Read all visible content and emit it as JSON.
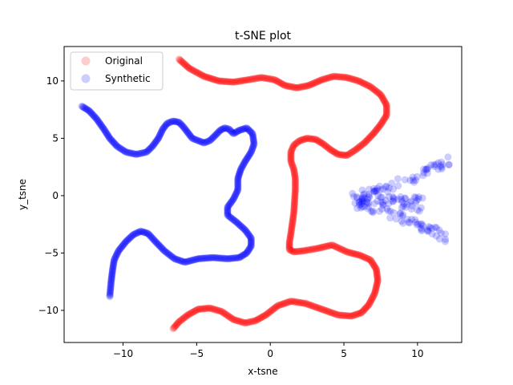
{
  "chart_data": {
    "type": "scatter",
    "title": "t-SNE plot",
    "xlabel": "x-tsne",
    "ylabel": "y_tsne",
    "xlim": [
      -14,
      13
    ],
    "ylim": [
      -12.8,
      13
    ],
    "xticks": [
      -10,
      -5,
      0,
      5,
      10
    ],
    "yticks": [
      -10,
      -5,
      0,
      5,
      10
    ],
    "xtick_labels": [
      "−10",
      "−5",
      "0",
      "5",
      "10"
    ],
    "ytick_labels": [
      "−10",
      "−5",
      "0",
      "5",
      "10"
    ],
    "grid": false,
    "legend_position": "top-left",
    "series": [
      {
        "name": "Original",
        "color": "#ff0000",
        "alpha": 0.2,
        "style": "dense-path",
        "x": [
          -6.2,
          -5.5,
          -4.5,
          -3.5,
          -2.5,
          -1.5,
          -0.6,
          0.3,
          1.0,
          1.8,
          2.6,
          3.5,
          4.3,
          5.2,
          6.0,
          6.8,
          7.5,
          7.9,
          7.9,
          7.5,
          7.0,
          6.4,
          5.8,
          5.2,
          4.6,
          4.1,
          3.6,
          3.1,
          2.5,
          2.0,
          1.6,
          1.4,
          1.4,
          1.6,
          1.7,
          1.7,
          1.65,
          1.6,
          1.5,
          1.4,
          1.3,
          1.3,
          1.6,
          2.3,
          3.2,
          4.2,
          5.2,
          6.1,
          6.8,
          7.2,
          7.3,
          7.1,
          6.7,
          6.2,
          5.5,
          4.6,
          3.5,
          2.4,
          1.4,
          0.5,
          -0.3,
          -1.0,
          -1.7,
          -2.5,
          -3.3,
          -4.1,
          -4.9,
          -5.6,
          -6.2,
          -6.6
        ],
        "y": [
          11.9,
          11.1,
          10.4,
          10.0,
          9.9,
          10.1,
          10.3,
          10.1,
          9.6,
          9.4,
          9.6,
          10.1,
          10.4,
          10.3,
          10.0,
          9.5,
          8.8,
          7.9,
          7.0,
          6.2,
          5.4,
          4.6,
          4.0,
          3.5,
          3.6,
          4.0,
          4.5,
          4.9,
          5.0,
          4.8,
          4.4,
          3.8,
          3.0,
          2.3,
          1.5,
          0.5,
          -0.5,
          -1.5,
          -2.4,
          -3.3,
          -4.1,
          -4.7,
          -4.9,
          -4.8,
          -4.6,
          -4.3,
          -4.9,
          -5.2,
          -5.6,
          -6.4,
          -7.4,
          -8.5,
          -9.5,
          -10.2,
          -10.5,
          -10.4,
          -9.9,
          -9.4,
          -9.2,
          -9.6,
          -10.4,
          -10.9,
          -11.1,
          -10.8,
          -10.1,
          -9.8,
          -9.9,
          -10.4,
          -11.0,
          -11.6
        ]
      },
      {
        "name": "Synthetic",
        "color": "#0000ff",
        "alpha": 0.2,
        "style": "dense-path-and-cluster",
        "x": [
          -12.8,
          -12.3,
          -11.8,
          -11.3,
          -10.9,
          -10.4,
          -9.8,
          -9.1,
          -8.4,
          -8.0,
          -7.6,
          -7.3,
          -7.0,
          -6.6,
          -6.2,
          -5.9,
          -5.6,
          -5.3,
          -4.9,
          -4.5,
          -4.1,
          -3.7,
          -3.4,
          -3.1,
          -2.8,
          -2.5,
          -2.1,
          -1.6,
          -1.2,
          -1.1,
          -1.3,
          -1.7,
          -2.0,
          -2.2,
          -2.2,
          -2.5,
          -2.9,
          -2.9,
          -2.3,
          -1.7,
          -1.3,
          -1.3,
          -1.6,
          -2.1,
          -2.9,
          -3.9,
          -4.9,
          -5.8,
          -6.5,
          -7.2,
          -7.8,
          -8.3,
          -8.8,
          -9.3,
          -9.8,
          -10.3,
          -10.6,
          -10.7,
          -10.8,
          -10.9
        ],
        "y": [
          7.8,
          7.4,
          6.7,
          5.8,
          5.0,
          4.3,
          3.8,
          3.6,
          3.8,
          4.3,
          5.0,
          5.8,
          6.3,
          6.5,
          6.4,
          6.0,
          5.5,
          5.0,
          4.8,
          4.6,
          4.8,
          5.3,
          5.7,
          5.9,
          5.8,
          5.4,
          5.7,
          5.9,
          5.4,
          4.5,
          3.8,
          3.0,
          2.3,
          1.5,
          0.5,
          -0.3,
          -1.0,
          -1.7,
          -2.3,
          -3.0,
          -3.7,
          -4.4,
          -5.0,
          -5.4,
          -5.5,
          -5.4,
          -5.5,
          -5.8,
          -5.5,
          -4.8,
          -4.0,
          -3.3,
          -3.1,
          -3.4,
          -4.0,
          -4.8,
          -5.6,
          -6.4,
          -7.4,
          -8.8
        ],
        "cluster_center": [
          8.7,
          -0.4
        ],
        "cluster_x_range": [
          5.3,
          11.9
        ],
        "cluster_y_range": [
          -4.1,
          3.4
        ]
      }
    ]
  }
}
